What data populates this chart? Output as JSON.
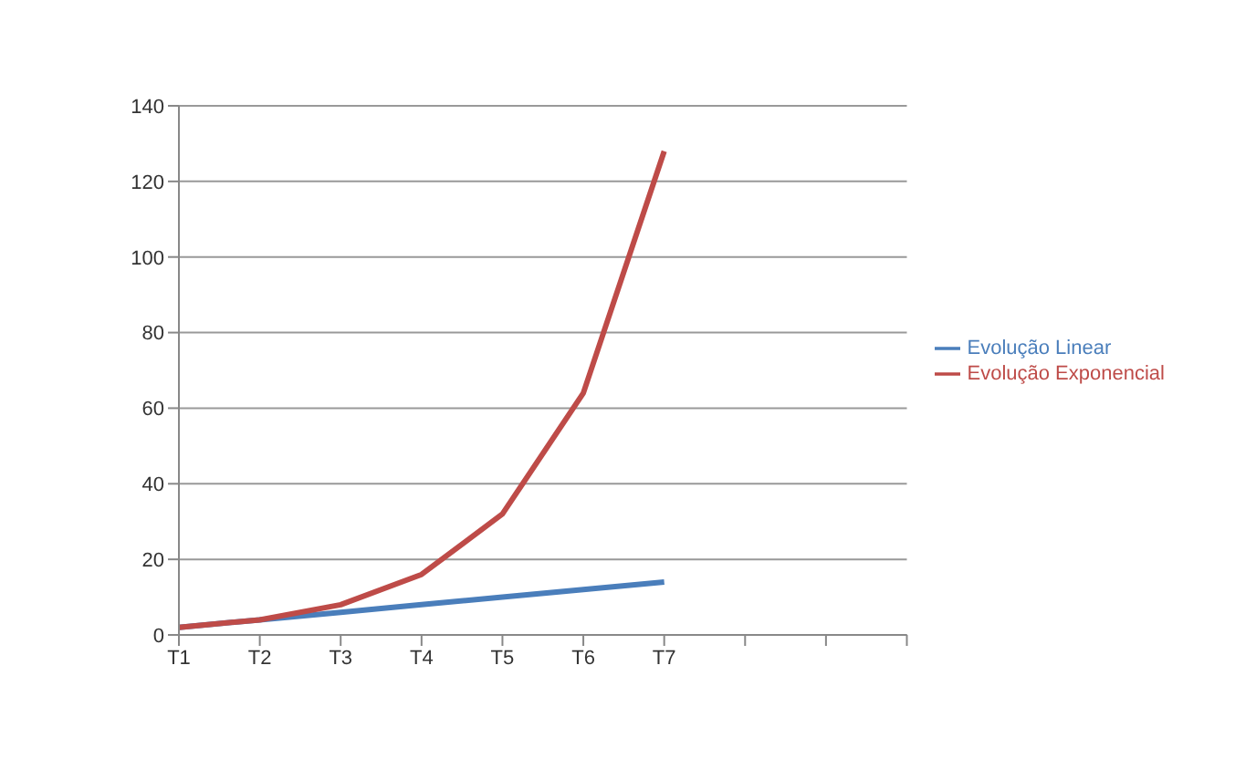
{
  "chart_data": {
    "type": "line",
    "categories": [
      "T1",
      "T2",
      "T3",
      "T4",
      "T5",
      "T6",
      "T7",
      null,
      null,
      null
    ],
    "series": [
      {
        "name": "Evolução Linear",
        "color": "#4a7ebb",
        "values": [
          2,
          4,
          6,
          8,
          10,
          12,
          14,
          null,
          null,
          null
        ]
      },
      {
        "name": "Evolução Exponencial",
        "color": "#be4b48",
        "values": [
          2,
          4,
          8,
          16,
          32,
          64,
          128,
          null,
          null,
          null
        ]
      }
    ],
    "ylim": [
      0,
      140
    ],
    "yticks": [
      0,
      20,
      40,
      60,
      80,
      100,
      120,
      140
    ],
    "grid": "y",
    "legend": "right",
    "marker": "none",
    "line_style": "solid"
  }
}
